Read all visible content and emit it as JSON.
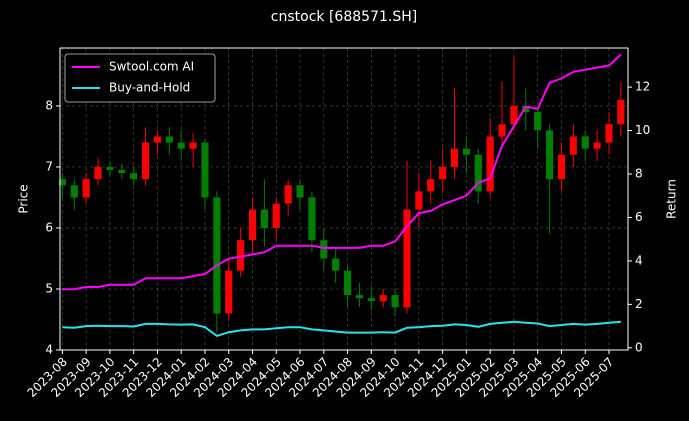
{
  "chart_data": {
    "type": "candlestick",
    "title": "cnstock [688571.SH]",
    "y_label": "Price",
    "y2_label": "Return",
    "up_color": "#ff0000",
    "down_color": "#008000",
    "grid": true,
    "legend": "upper left",
    "xlim": [
      -0.1,
      23.8
    ],
    "xticks": [
      {
        "value": 0,
        "label": "2023-08"
      },
      {
        "value": 1,
        "label": "2023-09"
      },
      {
        "value": 2,
        "label": "2023-10"
      },
      {
        "value": 3,
        "label": "2023-11"
      },
      {
        "value": 4,
        "label": "2023-12"
      },
      {
        "value": 5,
        "label": "2024-01"
      },
      {
        "value": 6,
        "label": "2024-02"
      },
      {
        "value": 7,
        "label": "2024-03"
      },
      {
        "value": 8,
        "label": "2024-04"
      },
      {
        "value": 9,
        "label": "2024-05"
      },
      {
        "value": 10,
        "label": "2024-06"
      },
      {
        "value": 11,
        "label": "2024-07"
      },
      {
        "value": 12,
        "label": "2024-08"
      },
      {
        "value": 13,
        "label": "2024-09"
      },
      {
        "value": 14,
        "label": "2024-10"
      },
      {
        "value": 15,
        "label": "2024-11"
      },
      {
        "value": 16,
        "label": "2024-12"
      },
      {
        "value": 17,
        "label": "2025-01"
      },
      {
        "value": 18,
        "label": "2025-02"
      },
      {
        "value": 19,
        "label": "2025-03"
      },
      {
        "value": 20,
        "label": "2025-04"
      },
      {
        "value": 21,
        "label": "2025-05"
      },
      {
        "value": 22,
        "label": "2025-06"
      },
      {
        "value": 23,
        "label": "2025-07"
      }
    ],
    "ylim": [
      4,
      8.95
    ],
    "yticks": [
      4,
      5,
      6,
      7,
      8
    ],
    "y2lim": [
      -0.1,
      13.8
    ],
    "y2ticks": [
      0,
      2,
      4,
      6,
      8,
      10,
      12
    ],
    "x": [
      0,
      0.5,
      1,
      1.5,
      2,
      2.5,
      3,
      3.5,
      4,
      4.5,
      5,
      5.5,
      6,
      6.5,
      7,
      7.5,
      8,
      8.5,
      9,
      9.5,
      10,
      10.5,
      11,
      11.5,
      12,
      12.5,
      13,
      13.5,
      14,
      14.5,
      15,
      15.5,
      16,
      16.5,
      17,
      17.5,
      18,
      18.5,
      19,
      19.5,
      20,
      20.5,
      21,
      21.5,
      22,
      22.5,
      23,
      23.5
    ],
    "open": [
      6.8,
      6.7,
      6.5,
      6.8,
      7.0,
      6.95,
      6.9,
      6.8,
      7.4,
      7.5,
      7.4,
      7.3,
      7.4,
      6.5,
      4.6,
      5.3,
      5.8,
      6.3,
      6.0,
      6.4,
      6.7,
      6.5,
      5.8,
      5.5,
      5.3,
      4.9,
      4.85,
      4.8,
      4.9,
      4.7,
      6.3,
      6.6,
      6.8,
      7.0,
      7.3,
      7.2,
      6.6,
      7.5,
      7.7,
      8.0,
      7.9,
      7.6,
      6.8,
      7.2,
      7.5,
      7.3,
      7.4,
      7.7
    ],
    "close": [
      6.7,
      6.5,
      6.8,
      7.0,
      6.95,
      6.9,
      6.8,
      7.4,
      7.5,
      7.4,
      7.3,
      7.4,
      6.5,
      4.6,
      5.3,
      5.8,
      6.3,
      6.0,
      6.4,
      6.7,
      6.5,
      5.8,
      5.5,
      5.3,
      4.9,
      4.85,
      4.8,
      4.9,
      4.7,
      6.3,
      6.6,
      6.8,
      7.0,
      7.3,
      7.2,
      6.6,
      7.5,
      7.7,
      8.0,
      7.9,
      7.6,
      6.8,
      7.2,
      7.5,
      7.3,
      7.4,
      7.7,
      8.1
    ],
    "high": [
      6.9,
      6.8,
      6.9,
      7.15,
      7.1,
      7.05,
      7.0,
      7.65,
      7.6,
      7.65,
      7.6,
      7.55,
      7.45,
      6.6,
      5.5,
      6.0,
      6.5,
      6.8,
      6.5,
      6.8,
      6.8,
      6.6,
      6.0,
      5.7,
      5.4,
      5.1,
      5.05,
      5.0,
      5.0,
      7.1,
      6.9,
      7.1,
      7.3,
      8.3,
      7.5,
      7.3,
      7.8,
      8.4,
      8.8,
      8.3,
      8.0,
      7.7,
      7.4,
      7.7,
      7.6,
      7.6,
      7.9,
      8.4
    ],
    "low": [
      6.5,
      6.3,
      6.4,
      6.7,
      6.85,
      6.8,
      6.7,
      6.7,
      7.2,
      7.2,
      7.1,
      7.0,
      6.3,
      4.3,
      4.5,
      5.2,
      5.6,
      5.7,
      5.8,
      6.2,
      6.3,
      5.6,
      5.3,
      5.1,
      4.7,
      4.7,
      4.65,
      4.7,
      4.55,
      4.6,
      6.0,
      6.4,
      6.6,
      6.8,
      6.9,
      6.4,
      6.5,
      7.3,
      7.6,
      7.6,
      7.3,
      5.9,
      6.6,
      7.0,
      7.1,
      7.1,
      7.2,
      7.5
    ],
    "series": [
      {
        "name": "Swtool.com AI",
        "color": "#ff00ff",
        "axis": "y2",
        "values": [
          2.7,
          2.7,
          2.8,
          2.8,
          2.9,
          2.9,
          2.9,
          3.2,
          3.2,
          3.2,
          3.2,
          3.3,
          3.4,
          3.8,
          4.1,
          4.2,
          4.3,
          4.4,
          4.7,
          4.7,
          4.7,
          4.7,
          4.6,
          4.6,
          4.6,
          4.6,
          4.7,
          4.7,
          4.9,
          5.6,
          6.2,
          6.3,
          6.6,
          6.8,
          7.0,
          7.6,
          7.8,
          9.3,
          10.2,
          11.1,
          11.0,
          12.2,
          12.4,
          12.7,
          12.8,
          12.9,
          13.0,
          13.5
        ]
      },
      {
        "name": "Buy-and-Hold",
        "color": "#22e5ee",
        "axis": "y2",
        "values": [
          0.95,
          0.92,
          1.0,
          1.02,
          1.0,
          1.0,
          0.98,
          1.1,
          1.1,
          1.08,
          1.07,
          1.08,
          0.95,
          0.55,
          0.72,
          0.8,
          0.85,
          0.85,
          0.9,
          0.95,
          0.95,
          0.85,
          0.8,
          0.75,
          0.7,
          0.7,
          0.7,
          0.72,
          0.7,
          0.92,
          0.95,
          1.0,
          1.02,
          1.08,
          1.05,
          0.97,
          1.1,
          1.15,
          1.2,
          1.15,
          1.12,
          1.0,
          1.05,
          1.1,
          1.07,
          1.1,
          1.15,
          1.2
        ]
      }
    ]
  }
}
